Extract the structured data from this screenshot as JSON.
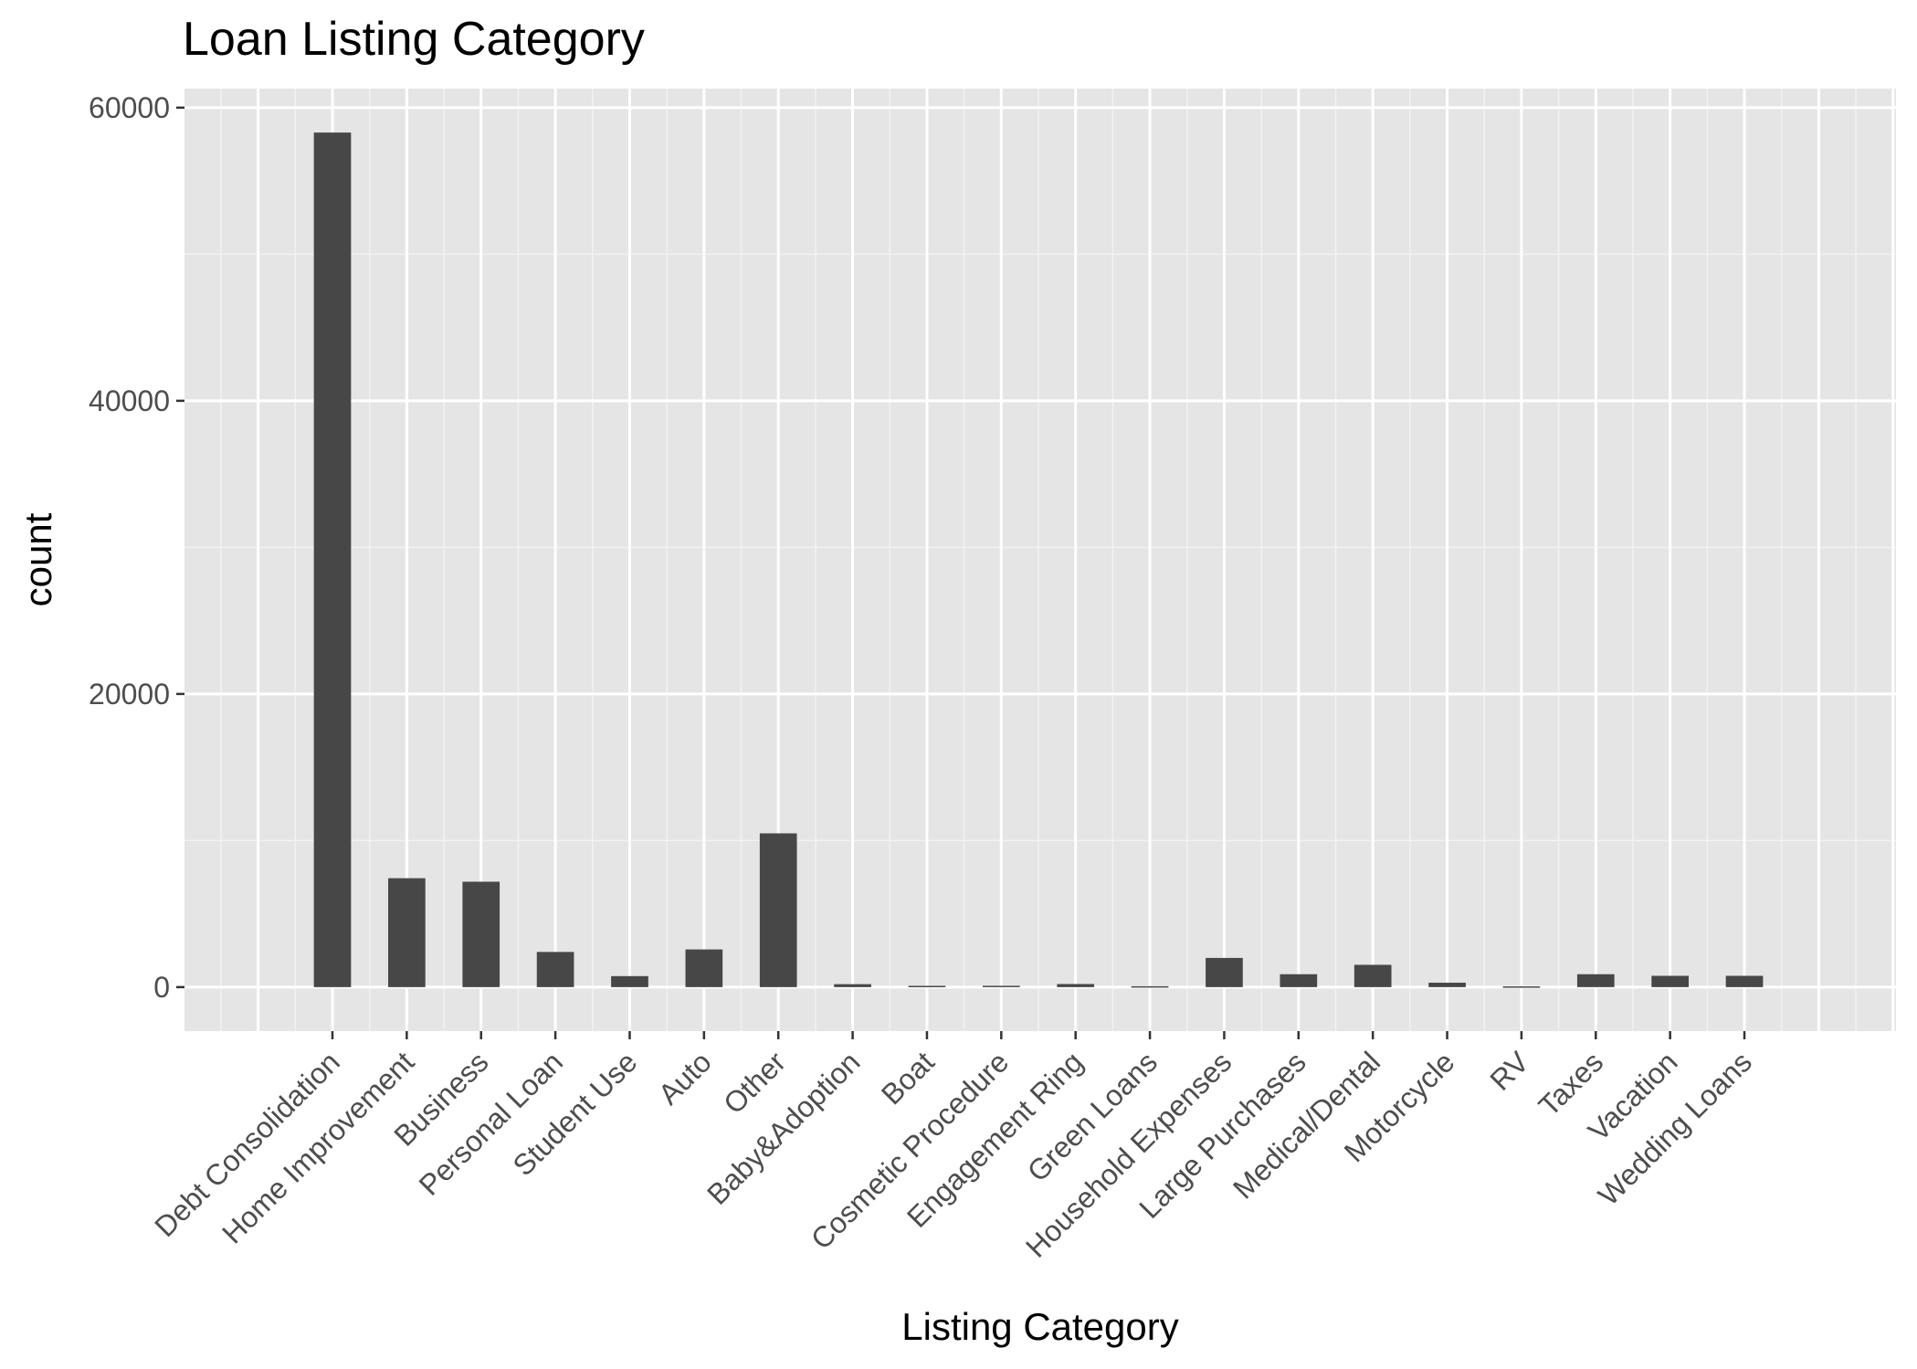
{
  "chart_data": {
    "type": "bar",
    "title": "Loan Listing Category",
    "xlabel": "Listing Category",
    "ylabel": "count",
    "categories": [
      "Debt Consolidation",
      "Home Improvement",
      "Business",
      "Personal Loan",
      "Student Use",
      "Auto",
      "Other",
      "Baby&Adoption",
      "Boat",
      "Cosmetic Procedure",
      "Engagement Ring",
      "Green Loans",
      "Household Expenses",
      "Large Purchases",
      "Medical/Dental",
      "Motorcycle",
      "RV",
      "Taxes",
      "Vacation",
      "Wedding Loans"
    ],
    "values": [
      58300,
      7430,
      7190,
      2400,
      750,
      2570,
      10490,
      200,
      85,
      90,
      210,
      60,
      1990,
      880,
      1520,
      300,
      50,
      880,
      770,
      770
    ],
    "yticks": [
      0,
      20000,
      40000,
      60000
    ],
    "ylim": [
      -3000,
      61300
    ],
    "grid": true,
    "bar_color": "#474747",
    "panel_color": "#e5e5e5"
  }
}
